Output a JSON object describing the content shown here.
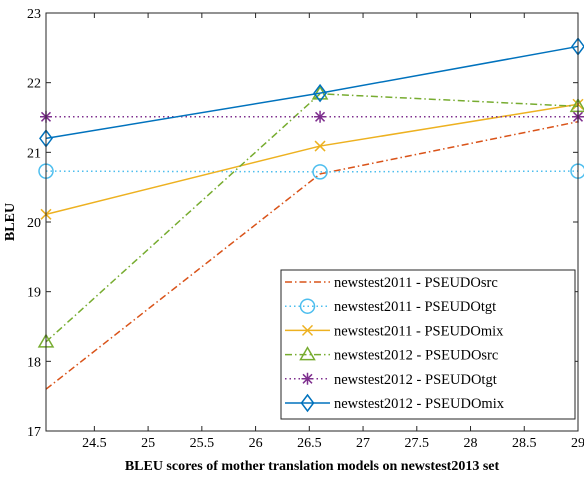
{
  "chart_data": {
    "type": "line",
    "xlabel": "BLEU scores of mother translation models on newstest2013 set",
    "ylabel": "BLEU",
    "xlim": [
      24.05,
      29
    ],
    "ylim": [
      17,
      23
    ],
    "xticks": [
      24.5,
      25,
      25.5,
      26,
      26.5,
      27,
      27.5,
      28,
      28.5,
      29
    ],
    "yticks": [
      17,
      18,
      19,
      20,
      21,
      22,
      23
    ],
    "x": [
      24.05,
      26.6,
      29
    ],
    "grid": false,
    "legend_position": "bottom-right",
    "series": [
      {
        "name": "newstest2011 - PSEUDOsrc",
        "values": [
          17.6,
          20.69,
          21.44
        ],
        "color": "#d95319",
        "dash": "dashdot",
        "marker": "none"
      },
      {
        "name": "newstest2011 - PSEUDOtgt",
        "values": [
          20.73,
          20.72,
          20.73
        ],
        "color": "#4dbeee",
        "dash": "dotted",
        "marker": "circle"
      },
      {
        "name": "newstest2011 - PSEUDOmix",
        "values": [
          20.11,
          21.09,
          21.69
        ],
        "color": "#edb120",
        "dash": "solid",
        "marker": "x"
      },
      {
        "name": "newstest2012 - PSEUDOsrc",
        "values": [
          18.28,
          21.84,
          21.66
        ],
        "color": "#77ac30",
        "dash": "dashdot",
        "marker": "triangle"
      },
      {
        "name": "newstest2012 - PSEUDOtgt",
        "values": [
          21.51,
          21.51,
          21.51
        ],
        "color": "#7e2f8e",
        "dash": "dotted",
        "marker": "asterisk"
      },
      {
        "name": "newstest2012 - PSEUDOmix",
        "values": [
          21.2,
          21.85,
          22.52
        ],
        "color": "#0072bd",
        "dash": "solid",
        "marker": "diamond"
      }
    ]
  }
}
